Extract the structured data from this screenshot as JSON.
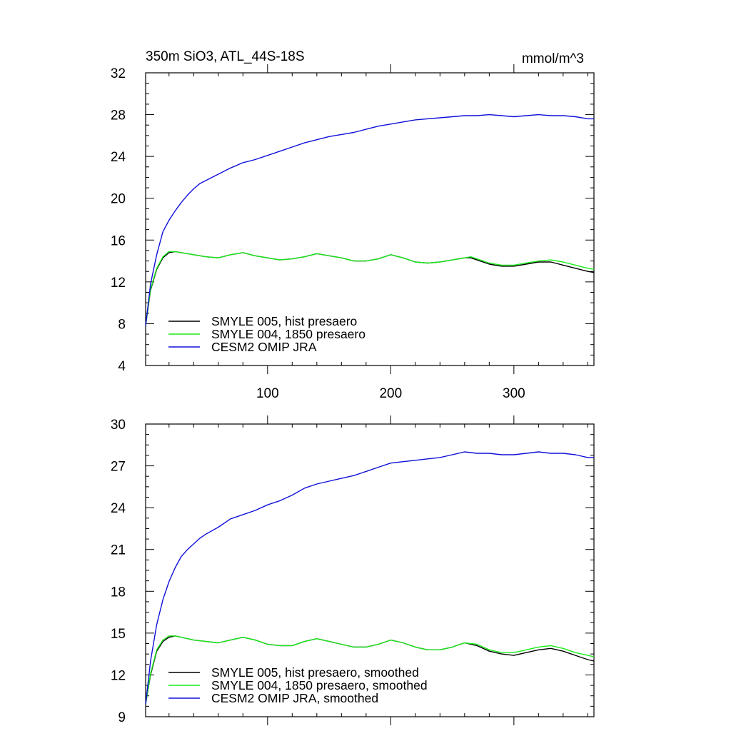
{
  "chart_data": [
    {
      "type": "line",
      "title": "350m SiO3, ATL_44S-18S",
      "units": "mmol/m^3",
      "xlabel": "",
      "ylabel": "",
      "xlim": [
        1,
        365
      ],
      "ylim": [
        4,
        32
      ],
      "xticks": [
        100,
        200,
        300
      ],
      "xtick_labels": [
        "100",
        "200",
        "300"
      ],
      "yticks": [
        4,
        8,
        12,
        16,
        20,
        24,
        28,
        32
      ],
      "ytick_labels": [
        "4",
        "8",
        "12",
        "16",
        "20",
        "24",
        "28",
        "32"
      ],
      "grid": false,
      "legend_position": "bottom-left",
      "series": [
        {
          "name": "SMYLE 005, hist presaero",
          "color": "#000000",
          "smoothed": false,
          "x": [
            1,
            5,
            10,
            15,
            20,
            25,
            30,
            40,
            50,
            60,
            70,
            80,
            90,
            100,
            110,
            120,
            130,
            140,
            150,
            160,
            170,
            180,
            190,
            200,
            210,
            220,
            230,
            240,
            250,
            260,
            265,
            270,
            280,
            290,
            300,
            310,
            320,
            330,
            340,
            350,
            360,
            365
          ],
          "y": [
            7.8,
            11.2,
            13.2,
            14.3,
            14.8,
            14.9,
            14.8,
            14.6,
            14.4,
            14.3,
            14.6,
            14.8,
            14.5,
            14.3,
            14.1,
            14.2,
            14.4,
            14.7,
            14.5,
            14.3,
            14.0,
            14.0,
            14.2,
            14.6,
            14.3,
            13.9,
            13.8,
            13.9,
            14.1,
            14.3,
            14.3,
            14.1,
            13.7,
            13.5,
            13.5,
            13.7,
            13.9,
            13.9,
            13.6,
            13.3,
            13.0,
            12.9
          ]
        },
        {
          "name": "SMYLE 004, 1850 presaero",
          "color": "#1aeb1a",
          "smoothed": false,
          "x": [
            1,
            5,
            10,
            15,
            20,
            25,
            30,
            40,
            50,
            60,
            70,
            80,
            90,
            100,
            110,
            120,
            130,
            140,
            150,
            160,
            170,
            180,
            190,
            200,
            210,
            220,
            230,
            240,
            250,
            260,
            265,
            270,
            280,
            290,
            300,
            310,
            320,
            330,
            340,
            350,
            360,
            365
          ],
          "y": [
            7.8,
            11.3,
            13.3,
            14.4,
            14.9,
            14.9,
            14.8,
            14.6,
            14.4,
            14.3,
            14.6,
            14.8,
            14.5,
            14.3,
            14.1,
            14.2,
            14.4,
            14.7,
            14.5,
            14.3,
            14.0,
            14.0,
            14.2,
            14.6,
            14.3,
            13.9,
            13.8,
            13.9,
            14.1,
            14.3,
            14.4,
            14.2,
            13.8,
            13.6,
            13.6,
            13.8,
            14.0,
            14.1,
            13.9,
            13.6,
            13.3,
            13.2
          ]
        },
        {
          "name": "CESM2 OMIP JRA",
          "color": "#1010d8",
          "smoothed": false,
          "x": [
            1,
            5,
            10,
            15,
            20,
            25,
            30,
            35,
            40,
            45,
            50,
            60,
            70,
            80,
            90,
            100,
            110,
            120,
            130,
            140,
            150,
            160,
            170,
            180,
            190,
            200,
            210,
            220,
            230,
            240,
            250,
            260,
            270,
            280,
            290,
            300,
            310,
            320,
            330,
            340,
            350,
            360,
            365
          ],
          "y": [
            7.8,
            11.8,
            14.6,
            16.8,
            17.9,
            18.8,
            19.6,
            20.3,
            20.9,
            21.4,
            21.7,
            22.3,
            22.9,
            23.4,
            23.7,
            24.1,
            24.5,
            24.9,
            25.3,
            25.6,
            25.9,
            26.1,
            26.3,
            26.6,
            26.9,
            27.1,
            27.3,
            27.5,
            27.6,
            27.7,
            27.8,
            27.9,
            27.9,
            28.0,
            27.9,
            27.8,
            27.9,
            28.0,
            27.9,
            27.9,
            27.8,
            27.6,
            27.6
          ]
        }
      ]
    },
    {
      "type": "line",
      "title": "",
      "units": "",
      "xlabel": "",
      "ylabel": "",
      "xlim": [
        1,
        365
      ],
      "ylim": [
        9,
        30
      ],
      "xticks": [
        100,
        200,
        300
      ],
      "yticks": [
        9,
        12,
        15,
        18,
        21,
        24,
        27,
        30
      ],
      "ytick_labels": [
        "9",
        "12",
        "15",
        "18",
        "21",
        "24",
        "27",
        "30"
      ],
      "grid": false,
      "legend_position": "bottom-left",
      "series": [
        {
          "name": "SMYLE 005, hist presaero, smoothed",
          "color": "#000000",
          "smoothed": true,
          "x": [
            1,
            5,
            10,
            15,
            20,
            25,
            30,
            40,
            50,
            60,
            70,
            80,
            90,
            100,
            110,
            120,
            130,
            140,
            150,
            160,
            170,
            180,
            190,
            200,
            210,
            220,
            230,
            240,
            250,
            260,
            270,
            280,
            290,
            300,
            310,
            320,
            330,
            340,
            350,
            360,
            365
          ],
          "y": [
            9.9,
            12.0,
            13.7,
            14.4,
            14.7,
            14.8,
            14.7,
            14.5,
            14.4,
            14.3,
            14.5,
            14.7,
            14.5,
            14.2,
            14.1,
            14.1,
            14.4,
            14.6,
            14.4,
            14.2,
            14.0,
            14.0,
            14.2,
            14.5,
            14.3,
            14.0,
            13.8,
            13.8,
            14.0,
            14.3,
            14.1,
            13.7,
            13.5,
            13.4,
            13.6,
            13.8,
            13.9,
            13.7,
            13.4,
            13.1,
            13.0
          ]
        },
        {
          "name": "SMYLE 004, 1850 presaero, smoothed",
          "color": "#1aeb1a",
          "smoothed": true,
          "x": [
            1,
            5,
            10,
            15,
            20,
            25,
            30,
            40,
            50,
            60,
            70,
            80,
            90,
            100,
            110,
            120,
            130,
            140,
            150,
            160,
            170,
            180,
            190,
            200,
            210,
            220,
            230,
            240,
            250,
            260,
            270,
            280,
            290,
            300,
            310,
            320,
            330,
            340,
            350,
            360,
            365
          ],
          "y": [
            9.9,
            12.1,
            13.8,
            14.5,
            14.8,
            14.8,
            14.7,
            14.5,
            14.4,
            14.3,
            14.5,
            14.7,
            14.5,
            14.2,
            14.1,
            14.1,
            14.4,
            14.6,
            14.4,
            14.2,
            14.0,
            14.0,
            14.2,
            14.5,
            14.3,
            14.0,
            13.8,
            13.8,
            14.0,
            14.3,
            14.2,
            13.8,
            13.6,
            13.6,
            13.8,
            14.0,
            14.1,
            13.9,
            13.6,
            13.4,
            13.3
          ]
        },
        {
          "name": "CESM2 OMIP JRA, smoothed",
          "color": "#1010d8",
          "smoothed": true,
          "x": [
            1,
            5,
            10,
            15,
            20,
            25,
            30,
            35,
            40,
            45,
            50,
            60,
            70,
            80,
            90,
            100,
            110,
            120,
            130,
            140,
            150,
            160,
            170,
            180,
            190,
            200,
            210,
            220,
            230,
            240,
            250,
            260,
            270,
            280,
            290,
            300,
            310,
            320,
            330,
            340,
            350,
            360,
            365
          ],
          "y": [
            9.9,
            13.0,
            15.6,
            17.4,
            18.7,
            19.7,
            20.5,
            21.0,
            21.4,
            21.8,
            22.1,
            22.6,
            23.2,
            23.5,
            23.8,
            24.2,
            24.5,
            24.9,
            25.4,
            25.7,
            25.9,
            26.1,
            26.3,
            26.6,
            26.9,
            27.2,
            27.3,
            27.4,
            27.5,
            27.6,
            27.8,
            28.0,
            27.9,
            27.9,
            27.8,
            27.8,
            27.9,
            28.0,
            27.9,
            27.9,
            27.8,
            27.6,
            27.6
          ]
        }
      ]
    }
  ]
}
